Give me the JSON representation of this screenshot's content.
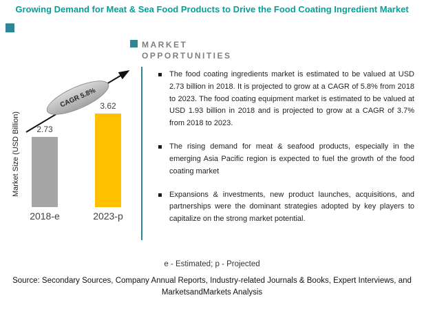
{
  "title": "Growing Demand for Meat & Sea Food Products to Drive the Food Coating Ingredient Market",
  "colors": {
    "title_teal": "#00a29b",
    "accent_teal": "#2e8593",
    "heading_gray": "#7f7f7f",
    "bar_gray": "#a6a6a6",
    "bar_yellow": "#ffc000"
  },
  "chart_data": {
    "type": "bar",
    "categories": [
      "2018-e",
      "2023-p"
    ],
    "values": [
      2.73,
      3.62
    ],
    "bar_colors": [
      "#a6a6a6",
      "#ffc000"
    ],
    "ylabel": "Market Size (USD Billion)",
    "ylim": [
      0,
      4
    ],
    "annotation": "CAGR 5.8%",
    "grid": false,
    "legend": "none"
  },
  "opportunities": {
    "heading_line1": "MARKET",
    "heading_line2": "OPPORTUNITIES",
    "bullets": [
      "The food coating ingredients market is estimated to be valued at USD 2.73 billion in 2018. It is projected to grow at a CAGR of 5.8% from 2018 to 2023. The food coating equipment market is estimated to be valued at USD 1.93 billion in 2018 and is projected to grow at a CAGR of 3.7% from 2018 to 2023.",
      "The rising demand for meat & seafood products, especially in the emerging Asia Pacific region is expected to fuel the growth of the food coating market",
      "Expansions & investments, new product launches, acquisitions, and partnerships were the dominant strategies adopted by key players to capitalize on the strong market potential."
    ]
  },
  "footnote": "e - Estimated; p - Projected",
  "source": "Source: Secondary Sources, Company Annual Reports, Industry-related Journals & Books, Expert Interviews, and MarketsandMarkets Analysis"
}
